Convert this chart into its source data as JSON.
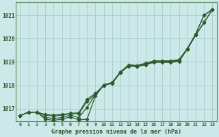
{
  "title": "Graphe pression niveau de la mer (hPa)",
  "bg_color": "#cce8e8",
  "grid_color": "#aad0d0",
  "line_color": "#2d5a2d",
  "xlim": [
    -0.5,
    23.5
  ],
  "ylim": [
    1016.45,
    1021.55
  ],
  "yticks": [
    1017,
    1018,
    1019,
    1020,
    1021
  ],
  "xticks": [
    0,
    1,
    2,
    3,
    4,
    5,
    6,
    7,
    8,
    9,
    10,
    11,
    12,
    13,
    14,
    15,
    16,
    17,
    18,
    19,
    20,
    21,
    22,
    23
  ],
  "s1": [
    1016.7,
    1016.85,
    1016.85,
    1016.75,
    1016.72,
    1016.75,
    1016.8,
    1016.82,
    1017.4,
    1017.65,
    1018.0,
    1018.1,
    1018.55,
    1018.85,
    1018.82,
    1018.92,
    1019.0,
    1019.0,
    1019.0,
    1019.05,
    1019.55,
    1020.2,
    1021.0,
    1021.25
  ],
  "s2": [
    1016.7,
    1016.85,
    1016.85,
    1016.55,
    1016.5,
    1016.55,
    1016.65,
    1016.52,
    1016.55,
    1017.55,
    1018.0,
    1018.08,
    1018.55,
    1018.82,
    1018.8,
    1018.88,
    1018.98,
    1018.98,
    1018.98,
    1019.02,
    1019.55,
    1020.15,
    1020.68,
    1021.25
  ],
  "s3": [
    1016.7,
    1016.85,
    1016.85,
    1016.62,
    1016.58,
    1016.62,
    1016.72,
    1016.62,
    1017.05,
    1017.6,
    1018.0,
    1018.1,
    1018.58,
    1018.85,
    1018.82,
    1018.9,
    1019.0,
    1019.02,
    1019.02,
    1019.08,
    1019.55,
    1020.15,
    1020.7,
    1021.25
  ],
  "s4": [
    1016.7,
    1016.85,
    1016.85,
    1016.72,
    1016.68,
    1016.72,
    1016.78,
    1016.78,
    1017.3,
    1017.62,
    1018.02,
    1018.12,
    1018.58,
    1018.88,
    1018.85,
    1018.95,
    1019.05,
    1019.05,
    1019.05,
    1019.1,
    1019.58,
    1020.2,
    1021.0,
    1021.25
  ]
}
